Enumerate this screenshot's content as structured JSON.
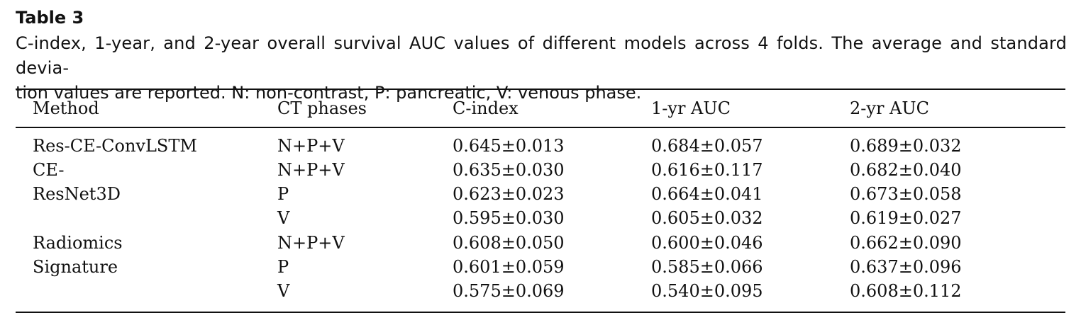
{
  "table": {
    "label": "Table 3",
    "caption_line1": "C-index, 1-year, and 2-year overall survival AUC values of different models across 4 folds. The average and standard devia-",
    "caption_line2": "tion values are reported. N: non-contrast, P: pancreatic, V: venous phase.",
    "columns": [
      "Method",
      "CT phases",
      "C-index",
      "1-yr AUC",
      "2-yr AUC"
    ],
    "rows": [
      {
        "method": "Res-CE-ConvLSTM",
        "phases": "N+P+V",
        "cindex": "0.645±0.013",
        "auc1": "0.684±0.057",
        "auc2": "0.689±0.032"
      },
      {
        "method": "CE-",
        "phases": "N+P+V",
        "cindex": "0.635±0.030",
        "auc1": "0.616±0.117",
        "auc2": "0.682±0.040"
      },
      {
        "method": "ResNet3D",
        "phases": "P",
        "cindex": "0.623±0.023",
        "auc1": "0.664±0.041",
        "auc2": "0.673±0.058"
      },
      {
        "method": "",
        "phases": "V",
        "cindex": "0.595±0.030",
        "auc1": "0.605±0.032",
        "auc2": "0.619±0.027"
      },
      {
        "method": "Radiomics",
        "phases": "N+P+V",
        "cindex": "0.608±0.050",
        "auc1": "0.600±0.046",
        "auc2": "0.662±0.090"
      },
      {
        "method": "Signature",
        "phases": "P",
        "cindex": "0.601±0.059",
        "auc1": "0.585±0.066",
        "auc2": "0.637±0.096"
      },
      {
        "method": "",
        "phases": "V",
        "cindex": "0.575±0.069",
        "auc1": "0.540±0.095",
        "auc2": "0.608±0.112"
      }
    ]
  }
}
